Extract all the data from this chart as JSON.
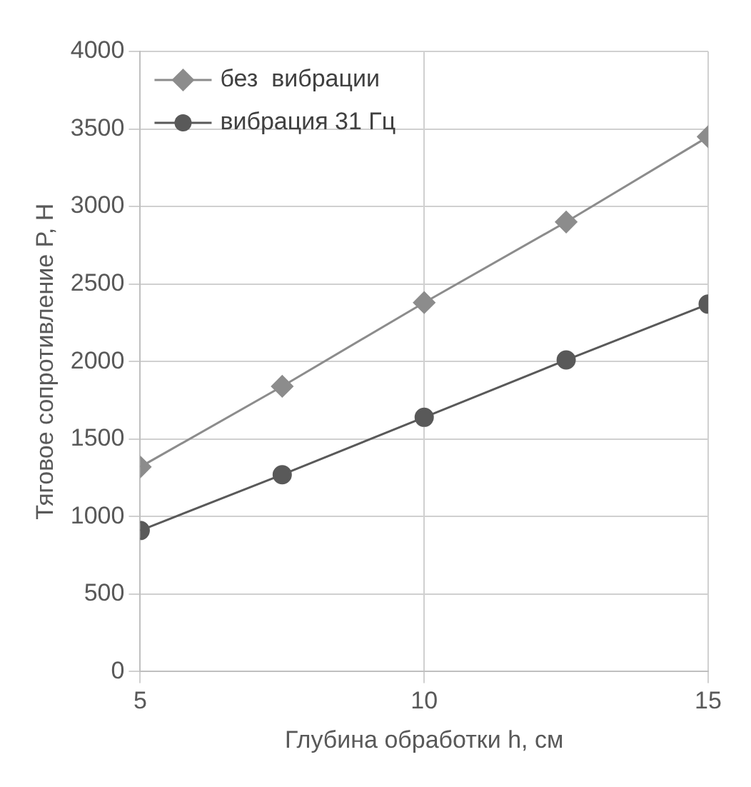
{
  "chart_data": {
    "type": "line",
    "xlabel": "Глубина обработки h, см",
    "ylabel": "Тяговое сопротивление P, Н",
    "x": [
      5,
      7.5,
      10,
      12.5,
      15
    ],
    "series": [
      {
        "name": "без  вибрации",
        "color": "#8c8c8c",
        "marker": "diamond",
        "values": [
          1320,
          1840,
          2380,
          2900,
          3450
        ]
      },
      {
        "name": "вибрация 31 Гц",
        "color": "#595959",
        "marker": "circle",
        "values": [
          910,
          1270,
          1640,
          2010,
          2370
        ]
      }
    ],
    "xlim": [
      5,
      15
    ],
    "xticks": [
      5,
      10,
      15
    ],
    "ylim": [
      0,
      4000
    ],
    "yticks": [
      0,
      500,
      1000,
      1500,
      2000,
      2500,
      3000,
      3500,
      4000
    ],
    "grid": true,
    "legend": "top left",
    "line_style": "solid"
  }
}
